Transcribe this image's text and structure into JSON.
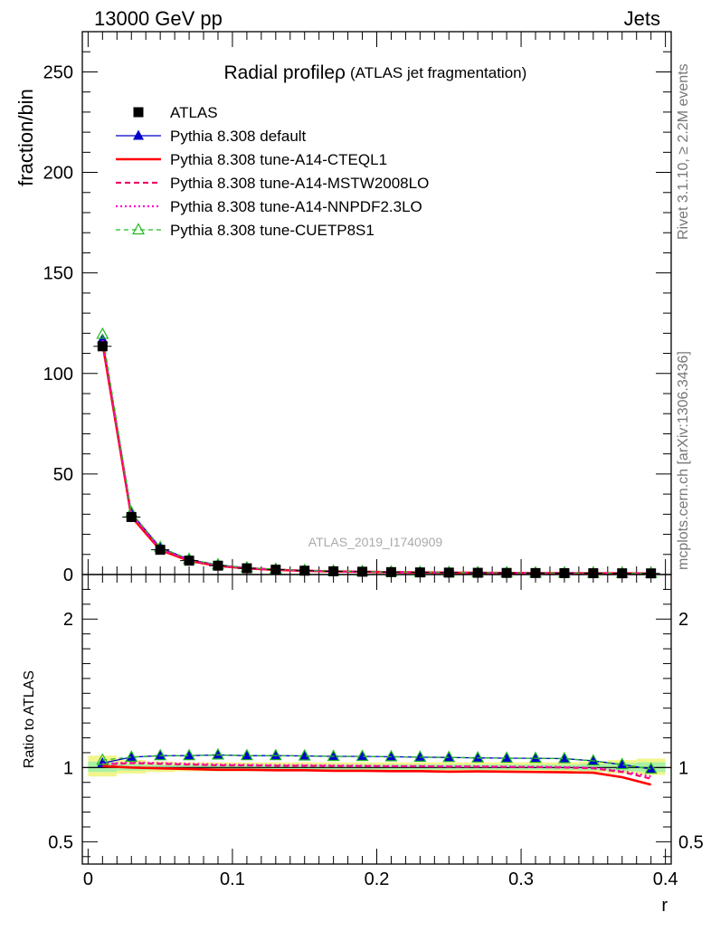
{
  "header": {
    "left": "13000 GeV pp",
    "right": "Jets"
  },
  "side_text": {
    "rivet": "Rivet 3.1.10, ≥ 2.2M events",
    "mcplots": "mcplots.cern.ch [arXiv:1306.3436]"
  },
  "chart_data": [
    {
      "type": "line",
      "title": "Radial profileρ",
      "subtitle": "(ATLAS jet fragmentation)",
      "watermark": "ATLAS_2019_I1740909",
      "ylabel": "fraction/bin",
      "xlabel": "",
      "xlim": [
        -0.004,
        0.404
      ],
      "ylim": [
        0,
        270
      ],
      "grid": false,
      "legend_position": "top-left",
      "y_ticks": [
        0,
        50,
        100,
        150,
        200,
        250
      ],
      "y_tick_labels": [
        "0",
        "50",
        "100",
        "150",
        "200",
        "250"
      ],
      "x": [
        0.01,
        0.03,
        0.05,
        0.07,
        0.09,
        0.11,
        0.13,
        0.15,
        0.17,
        0.19,
        0.21,
        0.23,
        0.25,
        0.27,
        0.29,
        0.31,
        0.33,
        0.35,
        0.37,
        0.39
      ],
      "series": [
        {
          "name": "ATLAS",
          "color": "#000000",
          "style": "data",
          "values": [
            113.5,
            28.6,
            12.3,
            6.9,
            4.4,
            3.1,
            2.4,
            1.9,
            1.6,
            1.4,
            1.2,
            1.05,
            0.95,
            0.87,
            0.8,
            0.74,
            0.69,
            0.65,
            0.61,
            0.58
          ]
        },
        {
          "name": "Pythia 8.308 default",
          "color": "#0000cc",
          "style": "solid-triangle",
          "values": [
            117.0,
            30.5,
            13.4,
            7.5,
            4.8,
            3.35,
            2.6,
            2.05,
            1.72,
            1.5,
            1.29,
            1.13,
            1.02,
            0.93,
            0.86,
            0.79,
            0.74,
            0.68,
            0.62,
            0.57
          ]
        },
        {
          "name": "Pythia 8.308 tune-A14-CTEQL1",
          "color": "#ff0000",
          "style": "solid-thick",
          "values": [
            115.0,
            28.8,
            12.2,
            6.8,
            4.3,
            3.05,
            2.35,
            1.86,
            1.56,
            1.37,
            1.17,
            1.02,
            0.92,
            0.85,
            0.78,
            0.72,
            0.67,
            0.63,
            0.57,
            0.52
          ]
        },
        {
          "name": "Pythia 8.308 tune-A14-MSTW2008LO",
          "color": "#ee1166",
          "style": "dashed",
          "values": [
            116.0,
            29.5,
            12.6,
            7.0,
            4.5,
            3.15,
            2.44,
            1.93,
            1.62,
            1.42,
            1.22,
            1.07,
            0.96,
            0.88,
            0.81,
            0.75,
            0.7,
            0.66,
            0.6,
            0.54
          ]
        },
        {
          "name": "Pythia 8.308 tune-A14-NNPDF2.3LO",
          "color": "#ff00cc",
          "style": "dotted",
          "values": [
            116.5,
            29.6,
            12.7,
            7.05,
            4.5,
            3.16,
            2.45,
            1.94,
            1.63,
            1.43,
            1.22,
            1.07,
            0.97,
            0.88,
            0.81,
            0.75,
            0.7,
            0.66,
            0.6,
            0.55
          ]
        },
        {
          "name": "Pythia 8.308 tune-CUETP8S1",
          "color": "#22bb22",
          "style": "dashed-open-triangle",
          "values": [
            119.5,
            30.8,
            13.5,
            7.6,
            4.85,
            3.38,
            2.62,
            2.06,
            1.73,
            1.51,
            1.3,
            1.14,
            1.03,
            0.94,
            0.87,
            0.8,
            0.75,
            0.69,
            0.63,
            0.58
          ]
        }
      ]
    },
    {
      "type": "line",
      "title": "",
      "ylabel": "Ratio to ATLAS",
      "xlabel": "r",
      "xlim": [
        -0.004,
        0.404
      ],
      "ylim": [
        0.35,
        2.3
      ],
      "grid": false,
      "reference_line": 1.0,
      "y_ticks": [
        0.5,
        1,
        2
      ],
      "y_tick_labels": [
        "0.5",
        "1",
        "2"
      ],
      "x_ticks": [
        0,
        0.1,
        0.2,
        0.3,
        0.4
      ],
      "x_tick_labels": [
        "0",
        "0.1",
        "0.2",
        "0.3",
        "0.4"
      ],
      "x": [
        0.01,
        0.03,
        0.05,
        0.07,
        0.09,
        0.11,
        0.13,
        0.15,
        0.17,
        0.19,
        0.21,
        0.23,
        0.25,
        0.27,
        0.29,
        0.31,
        0.33,
        0.35,
        0.37,
        0.39
      ],
      "band_edges": [
        0.0,
        0.02,
        0.04,
        0.06,
        0.08,
        0.1,
        0.12,
        0.14,
        0.16,
        0.18,
        0.2,
        0.22,
        0.24,
        0.26,
        0.28,
        0.3,
        0.32,
        0.34,
        0.36,
        0.38,
        0.4
      ],
      "band_outer": [
        [
          0.94,
          1.08
        ],
        [
          0.96,
          1.05
        ],
        [
          0.97,
          1.04
        ],
        [
          0.975,
          1.035
        ],
        [
          0.975,
          1.035
        ],
        [
          0.975,
          1.035
        ],
        [
          0.975,
          1.035
        ],
        [
          0.975,
          1.035
        ],
        [
          0.975,
          1.035
        ],
        [
          0.975,
          1.035
        ],
        [
          0.975,
          1.035
        ],
        [
          0.975,
          1.035
        ],
        [
          0.975,
          1.035
        ],
        [
          0.975,
          1.035
        ],
        [
          0.975,
          1.035
        ],
        [
          0.975,
          1.035
        ],
        [
          0.975,
          1.035
        ],
        [
          0.97,
          1.04
        ],
        [
          0.96,
          1.05
        ],
        [
          0.95,
          1.06
        ]
      ],
      "band_inner": [
        [
          0.97,
          1.04
        ],
        [
          0.98,
          1.025
        ],
        [
          0.985,
          1.02
        ],
        [
          0.985,
          1.02
        ],
        [
          0.985,
          1.02
        ],
        [
          0.985,
          1.02
        ],
        [
          0.985,
          1.02
        ],
        [
          0.985,
          1.02
        ],
        [
          0.985,
          1.02
        ],
        [
          0.985,
          1.02
        ],
        [
          0.985,
          1.02
        ],
        [
          0.985,
          1.02
        ],
        [
          0.985,
          1.02
        ],
        [
          0.985,
          1.02
        ],
        [
          0.985,
          1.02
        ],
        [
          0.985,
          1.02
        ],
        [
          0.985,
          1.02
        ],
        [
          0.98,
          1.025
        ],
        [
          0.975,
          1.03
        ],
        [
          0.97,
          1.035
        ]
      ],
      "series": [
        {
          "name": "Pythia 8.308 default",
          "color": "#0000cc",
          "style": "solid-triangle",
          "values": [
            1.03,
            1.07,
            1.08,
            1.08,
            1.085,
            1.08,
            1.08,
            1.078,
            1.075,
            1.075,
            1.073,
            1.07,
            1.068,
            1.065,
            1.063,
            1.062,
            1.06,
            1.045,
            1.02,
            0.99
          ]
        },
        {
          "name": "Pythia 8.308 tune-A14-CTEQL1",
          "color": "#ff0000",
          "style": "solid-thick",
          "values": [
            1.01,
            1.0,
            0.995,
            0.99,
            0.985,
            0.985,
            0.982,
            0.982,
            0.978,
            0.978,
            0.976,
            0.976,
            0.972,
            0.974,
            0.972,
            0.97,
            0.968,
            0.965,
            0.935,
            0.885
          ]
        },
        {
          "name": "Pythia 8.308 tune-A14-MSTW2008LO",
          "color": "#ee1166",
          "style": "dashed",
          "values": [
            1.02,
            1.03,
            1.025,
            1.02,
            1.015,
            1.015,
            1.012,
            1.012,
            1.01,
            1.01,
            1.008,
            1.008,
            1.006,
            1.006,
            1.004,
            1.003,
            1.0,
            0.995,
            0.97,
            0.925
          ]
        },
        {
          "name": "Pythia 8.308 tune-A14-NNPDF2.3LO",
          "color": "#ff00cc",
          "style": "dotted",
          "values": [
            1.025,
            1.035,
            1.03,
            1.025,
            1.02,
            1.018,
            1.016,
            1.015,
            1.014,
            1.012,
            1.01,
            1.01,
            1.008,
            1.008,
            1.006,
            1.005,
            1.003,
            0.998,
            0.975,
            0.94
          ]
        },
        {
          "name": "Pythia 8.308 tune-CUETP8S1",
          "color": "#22bb22",
          "style": "dashed-open-triangle",
          "values": [
            1.05,
            1.07,
            1.08,
            1.08,
            1.085,
            1.08,
            1.08,
            1.078,
            1.075,
            1.075,
            1.073,
            1.07,
            1.068,
            1.065,
            1.063,
            1.062,
            1.06,
            1.045,
            1.02,
            0.99
          ]
        }
      ]
    }
  ]
}
